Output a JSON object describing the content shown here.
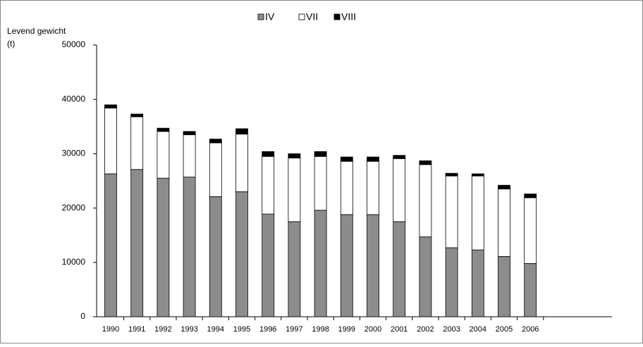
{
  "chart_data": {
    "type": "stacked-bar",
    "y_label": [
      "Levend gewicht",
      "(t)"
    ],
    "categories": [
      "1990",
      "1991",
      "1992",
      "1993",
      "1994",
      "1995",
      "1996",
      "1997",
      "1998",
      "1999",
      "2000",
      "2001",
      "2002",
      "2003",
      "2004",
      "2005",
      "2006"
    ],
    "series": [
      {
        "name": "IV",
        "color": "#8c8c8c",
        "values": [
          26300,
          27100,
          25500,
          25700,
          22100,
          23000,
          18900,
          17500,
          19600,
          18800,
          18800,
          17500,
          14700,
          12700,
          12300,
          11100,
          9800
        ]
      },
      {
        "name": "VII",
        "color": "#ffffff",
        "values": [
          12100,
          9700,
          8600,
          7800,
          9900,
          10600,
          10600,
          11700,
          9900,
          9800,
          9800,
          11600,
          13300,
          13200,
          13600,
          12400,
          12100
        ]
      },
      {
        "name": "VIII",
        "color": "#000000",
        "values": [
          600,
          500,
          600,
          600,
          700,
          1000,
          900,
          800,
          900,
          800,
          800,
          600,
          700,
          500,
          400,
          700,
          700
        ]
      }
    ],
    "ylim": [
      0,
      50000
    ],
    "yticks": [
      0,
      10000,
      20000,
      30000,
      40000,
      50000
    ],
    "grid": false
  }
}
